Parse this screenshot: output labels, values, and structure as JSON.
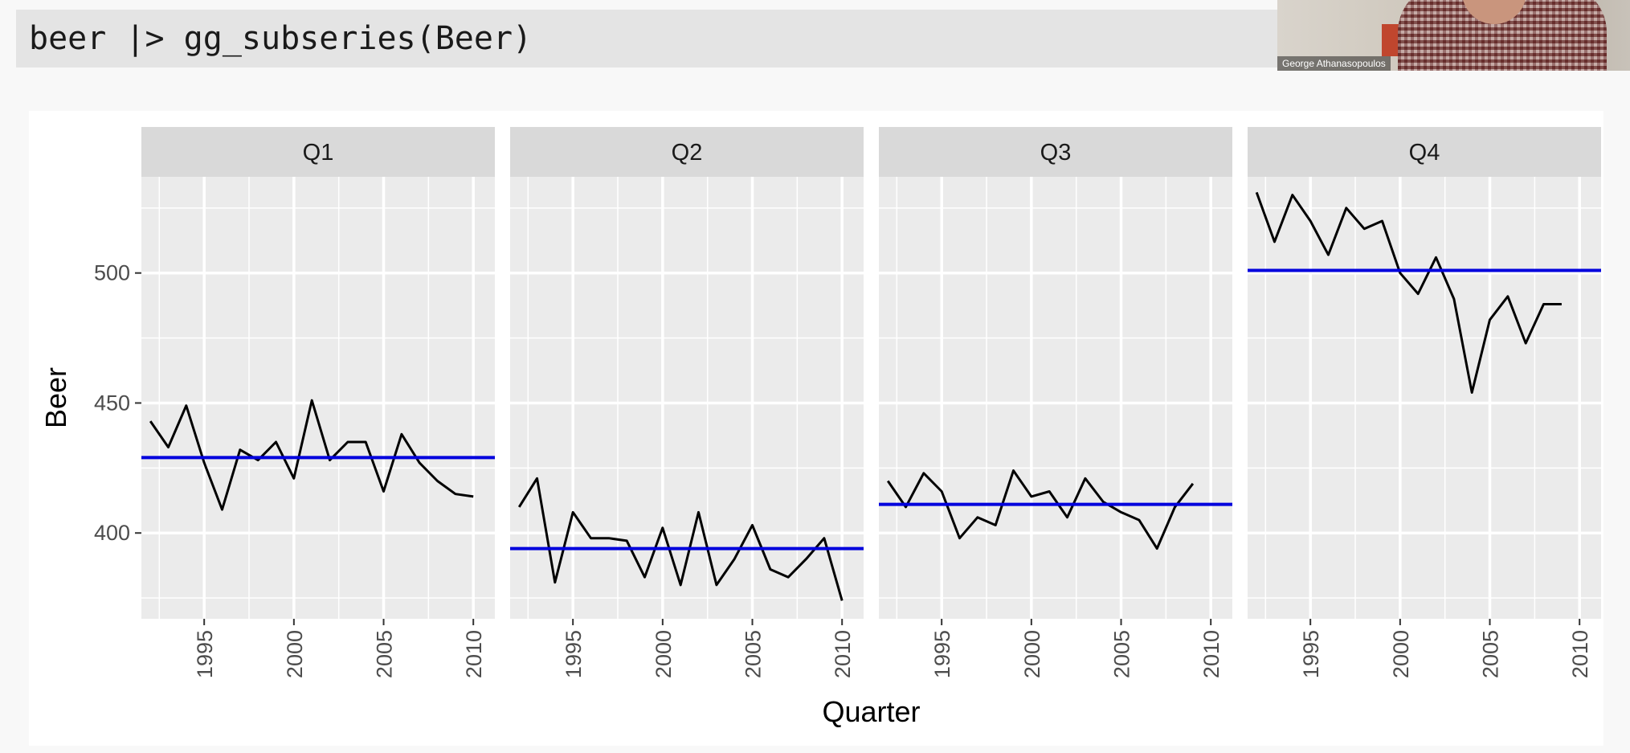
{
  "code": {
    "text": "beer |> gg_subseries(Beer)"
  },
  "video": {
    "name": "George Athanasopoulos"
  },
  "chart_data": {
    "type": "line",
    "xlabel": "Quarter",
    "ylabel": "Beer",
    "xlim": [
      1991.5,
      2011.2
    ],
    "ylim": [
      367,
      537
    ],
    "x_ticks": [
      1995,
      2000,
      2005,
      2010
    ],
    "y_ticks": [
      400,
      450,
      500
    ],
    "grid": true,
    "line_color": "#000000",
    "mean_color": "#0000dd",
    "facets": [
      {
        "label": "Q1",
        "mean": 429,
        "x": [
          1992,
          1993,
          1994,
          1995,
          1996,
          1997,
          1998,
          1999,
          2000,
          2001,
          2002,
          2003,
          2004,
          2005,
          2006,
          2007,
          2008,
          2009,
          2010
        ],
        "values": [
          443,
          433,
          449,
          427,
          409,
          432,
          428,
          435,
          421,
          451,
          428,
          435,
          435,
          416,
          438,
          427,
          420,
          415,
          414
        ]
      },
      {
        "label": "Q2",
        "mean": 394,
        "x": [
          1992,
          1993,
          1994,
          1995,
          1996,
          1997,
          1998,
          1999,
          2000,
          2001,
          2002,
          2003,
          2004,
          2005,
          2006,
          2007,
          2008,
          2009,
          2010
        ],
        "values": [
          410,
          421,
          381,
          408,
          398,
          398,
          397,
          383,
          402,
          380,
          408,
          380,
          390,
          403,
          386,
          383,
          390,
          398,
          374
        ]
      },
      {
        "label": "Q3",
        "mean": 411,
        "x": [
          1992,
          1993,
          1994,
          1995,
          1996,
          1997,
          1998,
          1999,
          2000,
          2001,
          2002,
          2003,
          2004,
          2005,
          2006,
          2007,
          2008,
          2009
        ],
        "values": [
          420,
          410,
          423,
          416,
          398,
          406,
          403,
          424,
          414,
          416,
          406,
          421,
          412,
          408,
          405,
          394,
          410,
          419
        ]
      },
      {
        "label": "Q4",
        "mean": 501,
        "x": [
          1992,
          1993,
          1994,
          1995,
          1996,
          1997,
          1998,
          1999,
          2000,
          2001,
          2002,
          2003,
          2004,
          2005,
          2006,
          2007,
          2008,
          2009
        ],
        "values": [
          531,
          512,
          530,
          520,
          507,
          525,
          517,
          520,
          500,
          492,
          506,
          490,
          454,
          482,
          491,
          473,
          488,
          488
        ]
      }
    ]
  }
}
